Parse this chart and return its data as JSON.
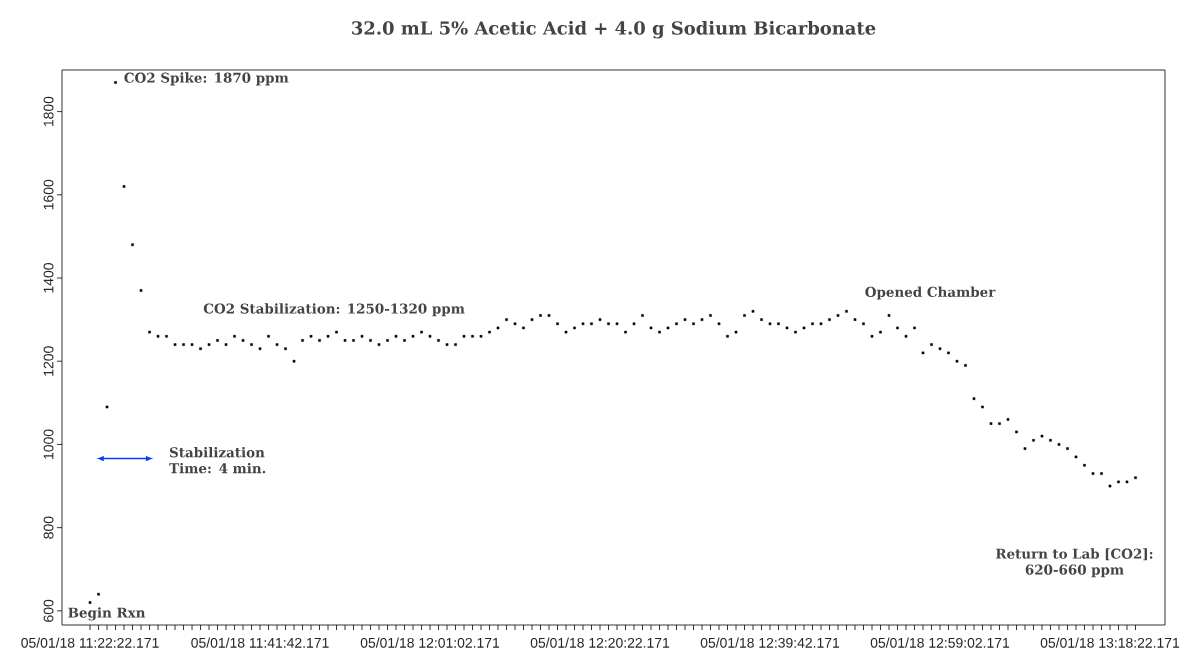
{
  "chart_data": {
    "type": "scatter",
    "title": "32.0 mL 5% Acetic Acid + 4.0 g Sodium Bicarbonate",
    "categories": [
      "05/01/18 11:22:22.171",
      null,
      null,
      null,
      null,
      null,
      null,
      null,
      null,
      null,
      null,
      null,
      null,
      null,
      null,
      null,
      null,
      null,
      null,
      null,
      "05/01/18 11:41:42.171",
      null,
      null,
      null,
      null,
      null,
      null,
      null,
      null,
      null,
      null,
      null,
      null,
      null,
      null,
      null,
      null,
      null,
      null,
      null,
      "05/01/18 12:01:02.171",
      null,
      null,
      null,
      null,
      null,
      null,
      null,
      null,
      null,
      null,
      null,
      null,
      null,
      null,
      null,
      null,
      null,
      null,
      null,
      "05/01/18 12:20:22.171",
      null,
      null,
      null,
      null,
      null,
      null,
      null,
      null,
      null,
      null,
      null,
      null,
      null,
      null,
      null,
      null,
      null,
      null,
      null,
      "05/01/18 12:39:42.171",
      null,
      null,
      null,
      null,
      null,
      null,
      null,
      null,
      null,
      null,
      null,
      null,
      null,
      null,
      null,
      null,
      null,
      null,
      null,
      "05/01/18 12:59:02.171",
      null,
      null,
      null,
      null,
      null,
      null,
      null,
      null,
      null,
      null,
      null,
      null,
      null,
      null,
      null,
      null,
      null,
      null,
      null,
      "05/01/18 13:18:22.171",
      null,
      null,
      null
    ],
    "values": [
      620,
      640,
      1090,
      1870,
      1620,
      1480,
      1370,
      1270,
      1260,
      1260,
      1240,
      1240,
      1240,
      1230,
      1240,
      1250,
      1240,
      1260,
      1250,
      1240,
      1230,
      1260,
      1240,
      1230,
      1200,
      1250,
      1260,
      1250,
      1260,
      1270,
      1250,
      1250,
      1260,
      1250,
      1240,
      1250,
      1260,
      1250,
      1260,
      1270,
      1260,
      1250,
      1240,
      1240,
      1260,
      1260,
      1260,
      1270,
      1280,
      1300,
      1290,
      1280,
      1300,
      1310,
      1310,
      1290,
      1270,
      1280,
      1290,
      1290,
      1300,
      1290,
      1290,
      1270,
      1290,
      1310,
      1280,
      1270,
      1280,
      1290,
      1300,
      1290,
      1300,
      1310,
      1290,
      1260,
      1270,
      1310,
      1320,
      1300,
      1290,
      1290,
      1280,
      1270,
      1280,
      1290,
      1290,
      1300,
      1310,
      1320,
      1300,
      1290,
      1260,
      1270,
      1310,
      1280,
      1260,
      1280,
      1220,
      1240,
      1230,
      1220,
      1200,
      1190,
      1110,
      1090,
      1050,
      1050,
      1060,
      1030,
      990,
      1010,
      1020,
      1010,
      1000,
      990,
      970,
      950,
      930,
      930,
      900,
      910,
      910,
      920
    ],
    "color": "#000000",
    "marker": "square",
    "ylim": [
      566,
      1900
    ],
    "yticks": [
      600,
      800,
      1000,
      1200,
      1400,
      1600,
      1800
    ],
    "grid": false,
    "annotations": [
      "CO2 Spike: 1870 ppm",
      "CO2 Stabilization: 1250-1320 ppm",
      "Opened Chamber",
      "Stabilization Time: 4 min.",
      "Return to Lab [CO2]: 620-660 ppm",
      "Begin Rxn"
    ]
  }
}
